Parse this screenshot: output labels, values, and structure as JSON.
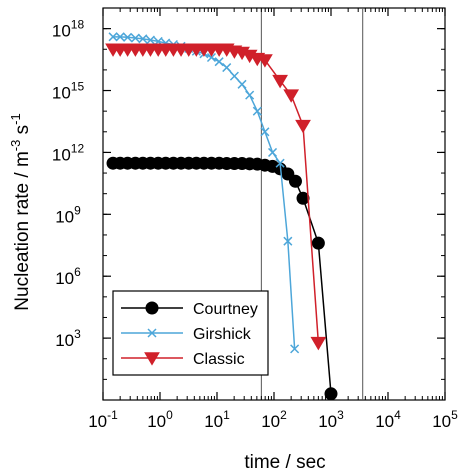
{
  "chart_data": {
    "type": "line",
    "xscale": "log",
    "yscale": "log",
    "xlabel": "time / sec",
    "ylabel": "Nucleation rate  / m",
    "ylabel_sup1": "-3",
    "ylabel_mid": " s",
    "ylabel_sup2": "-1",
    "xlim": [
      0.1,
      100000
    ],
    "ylim": [
      1,
      10000000000000000000
    ],
    "x_ticks": [
      {
        "base": "10",
        "exp": "-1",
        "value": 0.1
      },
      {
        "base": "10",
        "exp": "0",
        "value": 1
      },
      {
        "base": "10",
        "exp": "1",
        "value": 10
      },
      {
        "base": "10",
        "exp": "2",
        "value": 100
      },
      {
        "base": "10",
        "exp": "3",
        "value": 1000
      },
      {
        "base": "10",
        "exp": "4",
        "value": 10000
      },
      {
        "base": "10",
        "exp": "5",
        "value": 100000
      }
    ],
    "y_ticks": [
      {
        "base": "10",
        "exp": "3",
        "value": 1000
      },
      {
        "base": "10",
        "exp": "6",
        "value": 1000000
      },
      {
        "base": "10",
        "exp": "9",
        "value": 1000000000
      },
      {
        "base": "10",
        "exp": "12",
        "value": 1000000000000
      },
      {
        "base": "10",
        "exp": "15",
        "value": 1000000000000000
      },
      {
        "base": "10",
        "exp": "18",
        "value": 1000000000000000000
      }
    ],
    "reference_lines_x": [
      60,
      3600
    ],
    "grid": false,
    "legend_position": "bottom-left",
    "series": [
      {
        "name": "Courtney",
        "color": "#000000",
        "marker": "circle",
        "x": [
          0.15,
          0.2,
          0.27,
          0.37,
          0.5,
          0.68,
          0.93,
          1.26,
          1.72,
          2.34,
          3.19,
          4.34,
          5.9,
          8.0,
          10.9,
          14.8,
          20.2,
          27.5,
          37.4,
          50.9,
          69.3,
          94.3,
          128,
          175,
          238,
          323,
          440,
          600,
          1000
        ],
        "y": [
          300000000000.0,
          300000000000.0,
          300000000000.0,
          300000000000.0,
          300000000000.0,
          300000000000.0,
          300000000000.0,
          300000000000.0,
          300000000000.0,
          300000000000.0,
          300000000000.0,
          300000000000.0,
          300000000000.0,
          300000000000.0,
          300000000000.0,
          290000000000.0,
          290000000000.0,
          290000000000.0,
          280000000000.0,
          270000000000.0,
          240000000000.0,
          210000000000.0,
          160000000000.0,
          90000000000.0,
          40000000000.0,
          6000000000.0,
          null,
          40000000.0,
          2.0
        ]
      },
      {
        "name": "Girshick",
        "color": "#4da6d9",
        "marker": "x",
        "x": [
          0.15,
          0.2,
          0.27,
          0.37,
          0.5,
          0.68,
          0.93,
          1.26,
          1.72,
          2.34,
          3.19,
          4.34,
          5.9,
          8.0,
          10.9,
          14.8,
          20.2,
          27.5,
          37.4,
          50.9,
          69.3,
          94.3,
          128,
          175,
          230
        ],
        "y": [
          4e+17,
          4e+17,
          3.8e+17,
          3.5e+17,
          3.2e+17,
          2.8e+17,
          2.4e+17,
          2e+17,
          1.7e+17,
          1.4e+17,
          1.1e+17,
          8e+16,
          6e+16,
          4e+16,
          2.5e+16,
          1.3e+16,
          5000000000000000.0,
          2000000000000000.0,
          600000000000000.0,
          100000000000000.0,
          10000000000000.0,
          1000000000000.0,
          300000000000.0,
          50000000.0,
          300.0
        ]
      },
      {
        "name": "Classic",
        "color": "#d0202a",
        "marker": "triangle-down",
        "x": [
          0.15,
          0.2,
          0.27,
          0.37,
          0.5,
          0.68,
          0.93,
          1.26,
          1.72,
          2.34,
          3.19,
          4.34,
          5.9,
          8.0,
          10.9,
          14.8,
          20.2,
          27.5,
          37.4,
          50.9,
          69.3,
          128,
          200,
          323,
          600
        ],
        "y": [
          1e+17,
          1e+17,
          1e+17,
          1e+17,
          1e+17,
          1e+17,
          1e+17,
          1e+17,
          1e+17,
          1e+17,
          1e+17,
          1e+17,
          1e+17,
          1e+17,
          1e+17,
          1e+17,
          8e+16,
          7e+16,
          5e+16,
          3.5e+16,
          3e+16,
          3000000000000000.0,
          600000000000000.0,
          20000000000000.0,
          600.0
        ]
      }
    ]
  }
}
